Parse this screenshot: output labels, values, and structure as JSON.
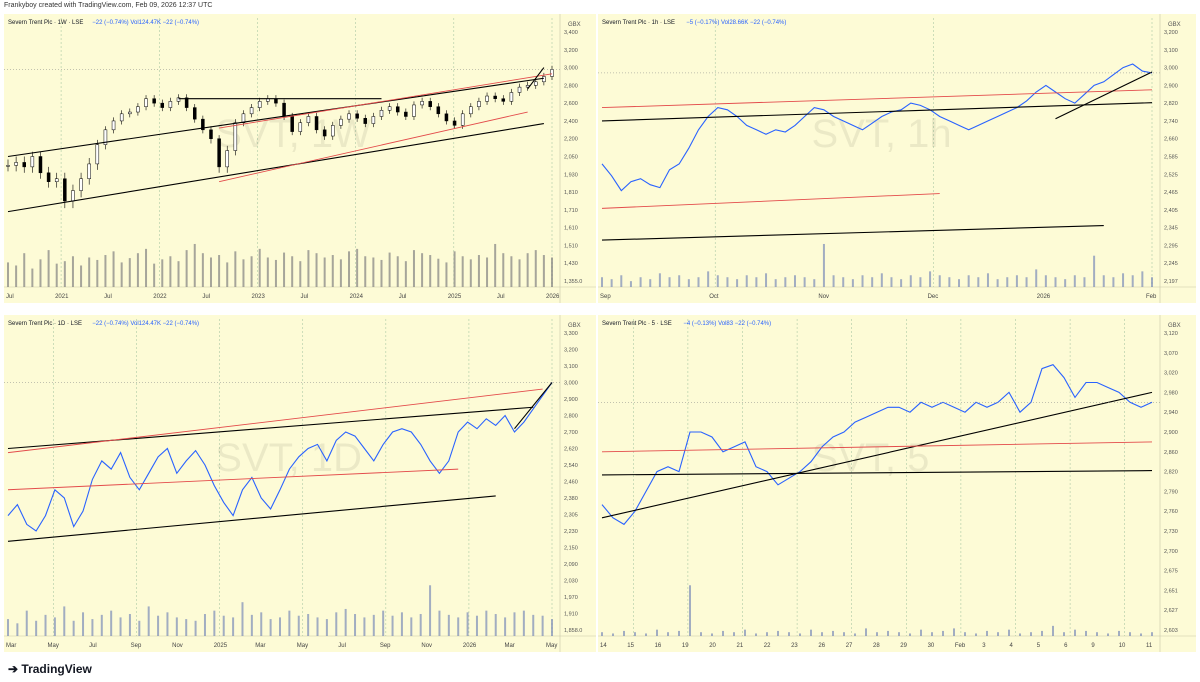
{
  "header": {
    "credit": "Frankyboy created with TradingView.com, Feb 09, 2026 12:37 UTC"
  },
  "footer": {
    "brand": "TradingView"
  },
  "colors": {
    "background": "#fdfbd6",
    "price": "#2962ff",
    "trend": "#000000",
    "channel": "#e34b4b",
    "volume": "#7a8bb8",
    "volume_w": "#808080"
  },
  "chart_data": [
    {
      "type": "candlestick",
      "title": "Severn Trent Plc · 1W · LSE",
      "stats": {
        "change1": "−22 (−0.74%)",
        "vol": "Vol124.47K",
        "change2": "−22 (−0.74%)"
      },
      "currency": "GBX",
      "watermark": "SVT, 1W",
      "y_ticks": [
        "3,400",
        "3,200",
        "3,000",
        "2,800",
        "2,600",
        "2,400",
        "2,200",
        "2,050",
        "1,930",
        "1,810",
        "1,710",
        "1,610",
        "1,510",
        "1,430",
        "1,355.0"
      ],
      "x_ticks": [
        "Jul",
        "2021",
        "Jul",
        "2022",
        "Jul",
        "2023",
        "Jul",
        "2024",
        "Jul",
        "2025",
        "Jul",
        "2026"
      ],
      "ylim_index": [
        0,
        14
      ],
      "closes": [
        1990,
        2010,
        1980,
        2050,
        1940,
        1880,
        1900,
        1760,
        1820,
        1900,
        2000,
        2150,
        2300,
        2400,
        2480,
        2500,
        2560,
        2650,
        2600,
        2550,
        2620,
        2660,
        2550,
        2420,
        2300,
        2200,
        1980,
        2100,
        2380,
        2480,
        2550,
        2620,
        2650,
        2600,
        2450,
        2280,
        2380,
        2450,
        2300,
        2230,
        2350,
        2420,
        2480,
        2430,
        2370,
        2450,
        2520,
        2560,
        2500,
        2450,
        2580,
        2620,
        2560,
        2480,
        2400,
        2350,
        2480,
        2560,
        2620,
        2680,
        2650,
        2620,
        2720,
        2780,
        2800,
        2840,
        2900,
        2980
      ],
      "volumes": [
        40,
        35,
        55,
        30,
        45,
        60,
        38,
        42,
        50,
        35,
        48,
        44,
        52,
        58,
        40,
        47,
        55,
        62,
        38,
        45,
        50,
        42,
        60,
        70,
        55,
        48,
        52,
        40,
        58,
        45,
        50,
        62,
        48,
        44,
        56,
        50,
        42,
        60,
        55,
        48,
        52,
        45,
        58,
        62,
        50,
        48,
        44,
        56,
        50,
        42,
        60,
        55,
        52,
        46,
        40,
        58,
        50,
        45,
        52,
        48,
        70,
        55,
        50,
        45,
        55,
        60,
        52,
        48
      ],
      "trendlines": [
        {
          "kind": "trend",
          "from": [
            0,
            2050
          ],
          "to": [
            66,
            2880
          ]
        },
        {
          "kind": "trend",
          "from": [
            0,
            1700
          ],
          "to": [
            66,
            2370
          ]
        },
        {
          "kind": "trend",
          "from": [
            21,
            2650
          ],
          "to": [
            46,
            2650
          ]
        },
        {
          "kind": "channel",
          "from": [
            26,
            2320
          ],
          "to": [
            67,
            2930
          ]
        },
        {
          "kind": "channel",
          "from": [
            26,
            1880
          ],
          "to": [
            64,
            2500
          ]
        },
        {
          "kind": "trend",
          "from": [
            64,
            2760
          ],
          "to": [
            66,
            3000
          ]
        }
      ]
    },
    {
      "type": "line",
      "title": "Severn Trent Plc · 1h · LSE",
      "stats": {
        "change1": "−5 (−0.17%)",
        "vol": "Vol28.66K",
        "change2": "−22 (−0.74%)"
      },
      "currency": "GBX",
      "watermark": "SVT, 1h",
      "y_ticks": [
        "3,200",
        "3,100",
        "3,000",
        "2,900",
        "2,820",
        "2,740",
        "2,660",
        "2,585",
        "2,525",
        "2,465",
        "2,405",
        "2,345",
        "2,295",
        "2,245",
        "2,197"
      ],
      "x_ticks": [
        "Sep",
        "Oct",
        "Nov",
        "Dec",
        "2026",
        "Feb"
      ],
      "y": [
        2560,
        2520,
        2470,
        2500,
        2510,
        2490,
        2480,
        2540,
        2560,
        2620,
        2700,
        2760,
        2800,
        2790,
        2760,
        2720,
        2700,
        2680,
        2700,
        2690,
        2720,
        2760,
        2800,
        2790,
        2760,
        2740,
        2720,
        2700,
        2730,
        2760,
        2780,
        2790,
        2820,
        2810,
        2790,
        2760,
        2740,
        2720,
        2700,
        2720,
        2740,
        2760,
        2780,
        2800,
        2830,
        2870,
        2900,
        2870,
        2840,
        2820,
        2860,
        2900,
        2920,
        2960,
        3000,
        3020,
        2980,
        2970
      ],
      "volumes": [
        5,
        4,
        6,
        3,
        5,
        4,
        7,
        5,
        6,
        4,
        5,
        8,
        6,
        5,
        4,
        6,
        5,
        7,
        4,
        5,
        6,
        5,
        4,
        22,
        6,
        5,
        4,
        6,
        5,
        7,
        5,
        4,
        6,
        5,
        8,
        6,
        5,
        4,
        6,
        5,
        7,
        4,
        5,
        6,
        5,
        9,
        6,
        5,
        4,
        6,
        5,
        16,
        6,
        5,
        7,
        6,
        8,
        5
      ],
      "trendlines": [
        {
          "kind": "trend",
          "from": [
            0,
            2740
          ],
          "to": [
            57,
            2822
          ]
        },
        {
          "kind": "channel",
          "from": [
            0,
            2800
          ],
          "to": [
            57,
            2880
          ]
        },
        {
          "kind": "channel",
          "from": [
            0,
            2410
          ],
          "to": [
            35,
            2460
          ]
        },
        {
          "kind": "trend",
          "from": [
            0,
            2310
          ],
          "to": [
            52,
            2352
          ]
        },
        {
          "kind": "trend",
          "from": [
            47,
            2750
          ],
          "to": [
            58,
            2975
          ]
        }
      ]
    },
    {
      "type": "line",
      "title": "Severn Trent Plc · 1D · LSE",
      "stats": {
        "change1": "−22 (−0.74%)",
        "vol": "Vol124.47K",
        "change2": "−22 (−0.74%)"
      },
      "currency": "GBX",
      "watermark": "SVT, 1D",
      "y_ticks": [
        "3,300",
        "3,200",
        "3,100",
        "3,000",
        "2,900",
        "2,800",
        "2,700",
        "2,620",
        "2,540",
        "2,460",
        "2,380",
        "2,305",
        "2,230",
        "2,150",
        "2,090",
        "2,030",
        "1,970",
        "1,910",
        "1,858.0"
      ],
      "x_ticks": [
        "Mar",
        "May",
        "Jul",
        "Sep",
        "Nov",
        "2025",
        "Mar",
        "May",
        "Jul",
        "Sep",
        "Nov",
        "2026",
        "Mar",
        "May"
      ],
      "y": [
        2300,
        2350,
        2260,
        2230,
        2300,
        2420,
        2380,
        2250,
        2320,
        2470,
        2560,
        2520,
        2600,
        2480,
        2420,
        2500,
        2580,
        2620,
        2500,
        2560,
        2610,
        2540,
        2440,
        2360,
        2300,
        2420,
        2480,
        2380,
        2330,
        2420,
        2520,
        2580,
        2620,
        2640,
        2560,
        2660,
        2700,
        2680,
        2620,
        2560,
        2640,
        2700,
        2720,
        2700,
        2640,
        2560,
        2500,
        2560,
        2700,
        2760,
        2720,
        2780,
        2740,
        2800,
        2700,
        2760,
        2840,
        2920,
        3000
      ],
      "volumes": [
        20,
        15,
        30,
        18,
        25,
        22,
        35,
        18,
        28,
        20,
        25,
        30,
        22,
        26,
        18,
        35,
        24,
        28,
        22,
        20,
        18,
        26,
        30,
        24,
        22,
        40,
        25,
        28,
        20,
        22,
        30,
        24,
        26,
        22,
        20,
        28,
        32,
        26,
        22,
        25,
        30,
        24,
        28,
        22,
        26,
        60,
        30,
        25,
        22,
        28,
        24,
        30,
        26,
        22,
        28,
        30,
        25,
        24,
        20
      ],
      "trendlines": [
        {
          "kind": "trend",
          "from": [
            0,
            2620
          ],
          "to": [
            56,
            2850
          ]
        },
        {
          "kind": "channel",
          "from": [
            0,
            2420
          ],
          "to": [
            48,
            2520
          ]
        },
        {
          "kind": "channel",
          "from": [
            0,
            2600
          ],
          "to": [
            57,
            2960
          ]
        },
        {
          "kind": "trend",
          "from": [
            0,
            2180
          ],
          "to": [
            52,
            2390
          ]
        },
        {
          "kind": "trend",
          "from": [
            54,
            2720
          ],
          "to": [
            58,
            3000
          ]
        }
      ]
    },
    {
      "type": "line",
      "title": "Severn Trent Plc · 5 · LSE",
      "stats": {
        "change1": "−4 (−0.13%)",
        "vol": "Vol83",
        "change2": "−22 (−0.74%)"
      },
      "currency": "GBX",
      "watermark": "SVT, 5",
      "y_ticks": [
        "3,120",
        "3,070",
        "3,020",
        "2,980",
        "2,940",
        "2,900",
        "2,860",
        "2,820",
        "2,790",
        "2,760",
        "2,730",
        "2,700",
        "2,675",
        "2,651",
        "2,627",
        "2,603"
      ],
      "x_ticks": [
        "14",
        "15",
        "16",
        "19",
        "20",
        "21",
        "22",
        "23",
        "26",
        "27",
        "28",
        "29",
        "30",
        "Feb",
        "3",
        "4",
        "5",
        "6",
        "9",
        "10",
        "11"
      ],
      "y": [
        2770,
        2750,
        2740,
        2760,
        2790,
        2820,
        2830,
        2820,
        2900,
        2900,
        2890,
        2860,
        2870,
        2880,
        2830,
        2820,
        2800,
        2810,
        2820,
        2840,
        2870,
        2890,
        2900,
        2920,
        2930,
        2940,
        2950,
        2950,
        2940,
        2960,
        2950,
        2960,
        2950,
        2940,
        2960,
        2950,
        2960,
        2980,
        2940,
        2960,
        3030,
        3040,
        3010,
        2970,
        3000,
        3000,
        2990,
        2980,
        2960,
        2950,
        2960
      ],
      "volumes": [
        3,
        2,
        4,
        3,
        2,
        5,
        3,
        4,
        40,
        3,
        2,
        4,
        3,
        5,
        2,
        3,
        4,
        3,
        2,
        5,
        3,
        4,
        3,
        2,
        6,
        3,
        4,
        3,
        2,
        5,
        3,
        4,
        6,
        3,
        2,
        4,
        3,
        5,
        2,
        3,
        4,
        8,
        3,
        5,
        4,
        3,
        2,
        4,
        3,
        2,
        3
      ],
      "trendlines": [
        {
          "kind": "trend",
          "from": [
            0,
            2750
          ],
          "to": [
            50,
            2980
          ]
        },
        {
          "kind": "channel",
          "from": [
            0,
            2860
          ],
          "to": [
            50,
            2880
          ]
        },
        {
          "kind": "trend",
          "from": [
            0,
            2815
          ],
          "to": [
            50,
            2822
          ]
        }
      ]
    }
  ]
}
